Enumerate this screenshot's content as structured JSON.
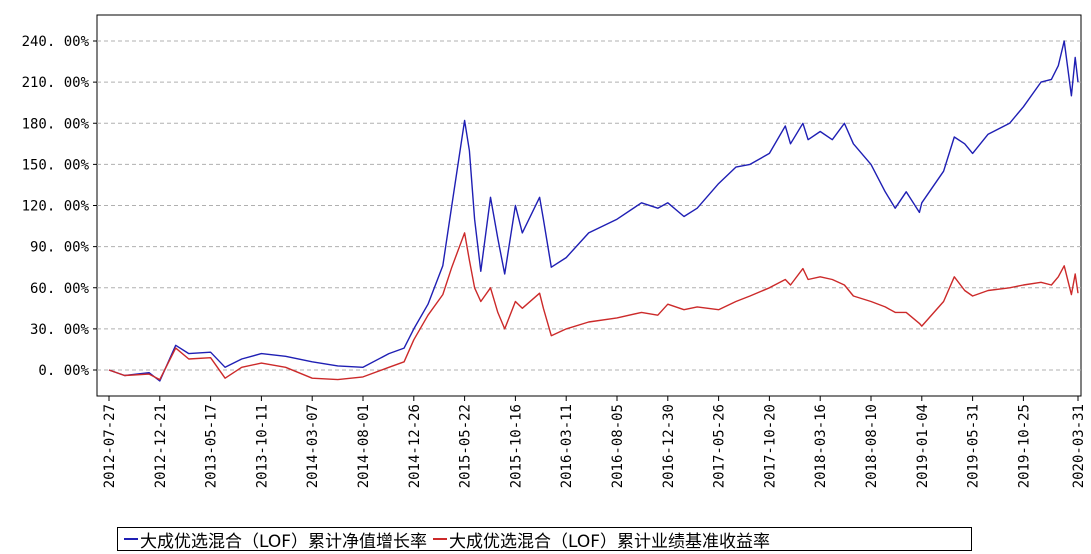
{
  "chart_data": {
    "type": "line",
    "title": "",
    "xlabel": "",
    "ylabel": "",
    "ylim": [
      -20,
      252
    ],
    "y_ticks": [
      0,
      30,
      60,
      90,
      120,
      150,
      180,
      210,
      240
    ],
    "y_tick_labels": [
      "0. 00%",
      "30. 00%",
      "60. 00%",
      "90. 00%",
      "120. 00%",
      "150. 00%",
      "180. 00%",
      "210. 00%",
      "240. 00%"
    ],
    "x_range": [
      "2012-07-27",
      "2020-03-31"
    ],
    "x_tick_labels": [
      "2012-07-27",
      "2012-12-21",
      "2013-05-17",
      "2013-10-11",
      "2014-03-07",
      "2014-08-01",
      "2014-12-26",
      "2015-05-22",
      "2015-10-16",
      "2016-03-11",
      "2016-08-05",
      "2016-12-30",
      "2017-05-26",
      "2017-10-20",
      "2018-03-16",
      "2018-08-10",
      "2019-01-04",
      "2019-05-31",
      "2019-10-25",
      "2020-03-31"
    ],
    "grid": true,
    "legend_position": "bottom",
    "series": [
      {
        "name": "大成优选混合（LOF）累计净值增长率",
        "color": "#1f1fb4",
        "x": [
          "2012-07-27",
          "2012-09-10",
          "2012-11-20",
          "2012-12-21",
          "2013-02-05",
          "2013-03-15",
          "2013-05-17",
          "2013-06-28",
          "2013-08-15",
          "2013-10-11",
          "2013-12-20",
          "2014-03-07",
          "2014-05-20",
          "2014-08-01",
          "2014-10-15",
          "2014-11-28",
          "2014-12-26",
          "2015-02-05",
          "2015-03-20",
          "2015-04-15",
          "2015-05-22",
          "2015-06-05",
          "2015-06-20",
          "2015-07-08",
          "2015-08-05",
          "2015-08-26",
          "2015-09-15",
          "2015-10-16",
          "2015-11-05",
          "2015-12-25",
          "2016-01-05",
          "2016-01-28",
          "2016-03-11",
          "2016-05-15",
          "2016-08-05",
          "2016-10-15",
          "2016-12-01",
          "2016-12-30",
          "2017-02-15",
          "2017-03-25",
          "2017-05-26",
          "2017-07-15",
          "2017-08-25",
          "2017-10-20",
          "2017-12-05",
          "2017-12-20",
          "2018-01-25",
          "2018-02-09",
          "2018-03-16",
          "2018-04-20",
          "2018-05-25",
          "2018-06-20",
          "2018-08-10",
          "2018-09-20",
          "2018-10-19",
          "2018-11-20",
          "2018-12-28",
          "2019-01-04",
          "2019-03-08",
          "2019-04-08",
          "2019-05-08",
          "2019-05-31",
          "2019-07-15",
          "2019-09-15",
          "2019-10-25",
          "2019-12-15",
          "2020-01-14",
          "2020-02-03",
          "2020-02-20",
          "2020-03-12",
          "2020-03-23",
          "2020-03-31"
        ],
        "y": [
          0,
          -4,
          -2,
          -8,
          18,
          12,
          13,
          2,
          8,
          12,
          10,
          6,
          3,
          2,
          12,
          16,
          30,
          48,
          76,
          120,
          182,
          160,
          110,
          72,
          126,
          96,
          70,
          120,
          100,
          126,
          110,
          75,
          82,
          100,
          110,
          122,
          118,
          122,
          112,
          118,
          136,
          148,
          150,
          158,
          178,
          165,
          180,
          168,
          174,
          168,
          180,
          165,
          150,
          130,
          118,
          130,
          115,
          122,
          145,
          170,
          165,
          158,
          172,
          180,
          192,
          210,
          212,
          222,
          240,
          200,
          228,
          210
        ]
      },
      {
        "name": "大成优选混合（LOF）累计业绩基准收益率",
        "color": "#cc2a2a",
        "x": [
          "2012-07-27",
          "2012-09-10",
          "2012-11-20",
          "2012-12-21",
          "2013-02-05",
          "2013-03-15",
          "2013-05-17",
          "2013-06-28",
          "2013-08-15",
          "2013-10-11",
          "2013-12-20",
          "2014-03-07",
          "2014-05-20",
          "2014-08-01",
          "2014-10-15",
          "2014-11-28",
          "2014-12-26",
          "2015-02-05",
          "2015-03-20",
          "2015-04-15",
          "2015-05-22",
          "2015-06-05",
          "2015-06-20",
          "2015-07-08",
          "2015-08-05",
          "2015-08-26",
          "2015-09-15",
          "2015-10-16",
          "2015-11-05",
          "2015-12-25",
          "2016-01-05",
          "2016-01-28",
          "2016-03-11",
          "2016-05-15",
          "2016-08-05",
          "2016-10-15",
          "2016-12-01",
          "2016-12-30",
          "2017-02-15",
          "2017-03-25",
          "2017-05-26",
          "2017-07-15",
          "2017-08-25",
          "2017-10-20",
          "2017-12-05",
          "2017-12-20",
          "2018-01-25",
          "2018-02-09",
          "2018-03-16",
          "2018-04-20",
          "2018-05-25",
          "2018-06-20",
          "2018-08-10",
          "2018-09-20",
          "2018-10-19",
          "2018-11-20",
          "2018-12-28",
          "2019-01-04",
          "2019-03-08",
          "2019-04-08",
          "2019-05-08",
          "2019-05-31",
          "2019-07-15",
          "2019-09-15",
          "2019-10-25",
          "2019-12-15",
          "2020-01-14",
          "2020-02-03",
          "2020-02-20",
          "2020-03-12",
          "2020-03-23",
          "2020-03-31"
        ],
        "y": [
          0,
          -4,
          -3,
          -7,
          16,
          8,
          9,
          -6,
          2,
          5,
          2,
          -6,
          -7,
          -5,
          2,
          6,
          22,
          40,
          55,
          75,
          100,
          80,
          60,
          50,
          60,
          42,
          30,
          50,
          45,
          56,
          45,
          25,
          30,
          35,
          38,
          42,
          40,
          48,
          44,
          46,
          44,
          50,
          54,
          60,
          66,
          62,
          74,
          66,
          68,
          66,
          62,
          54,
          50,
          46,
          42,
          42,
          34,
          32,
          50,
          68,
          58,
          54,
          58,
          60,
          62,
          64,
          62,
          68,
          76,
          55,
          70,
          56
        ]
      }
    ]
  }
}
